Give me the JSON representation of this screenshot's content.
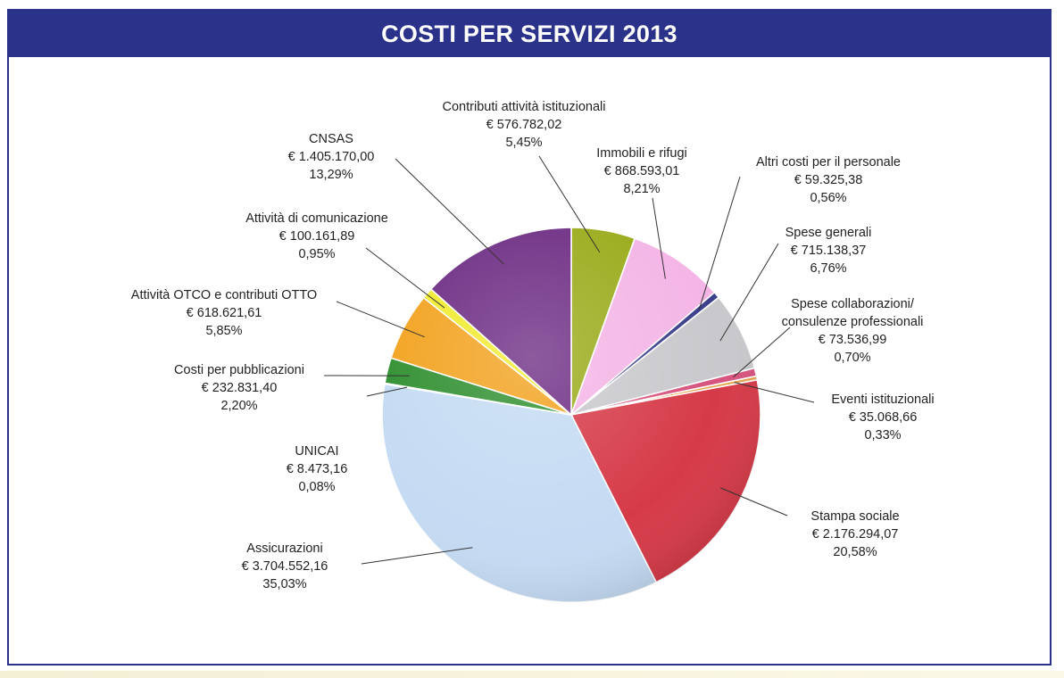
{
  "page": {
    "title": "COSTI  PER SERVIZI 2013"
  },
  "chart_data": {
    "type": "pie",
    "title": "COSTI  PER SERVIZI 2013",
    "total_percent": 100,
    "slices": [
      {
        "label": "Contributi attività istituzionali",
        "value_text": "€ 576.782,02",
        "percent_text": "5,45%",
        "percent": 5.45,
        "color": "#9aab1a"
      },
      {
        "label": "Immobili e rifugi",
        "value_text": "€ 868.593,01",
        "percent_text": "8,21%",
        "percent": 8.21,
        "color": "#f4b5e6"
      },
      {
        "label": "Altri costi per il personale",
        "value_text": "€ 59.325,38",
        "percent_text": "0,56%",
        "percent": 0.56,
        "color": "#3b3f8c"
      },
      {
        "label": "Spese generali",
        "value_text": "€ 715.138,37",
        "percent_text": "6,76%",
        "percent": 6.76,
        "color": "#c9c8cc"
      },
      {
        "label": "Spese collaborazioni/ consulenze professionali",
        "value_text": "€ 73.536,99",
        "percent_text": "0,70%",
        "percent": 0.7,
        "color": "#d6547e"
      },
      {
        "label": "Eventi istituzionali",
        "value_text": "€ 35.068,66",
        "percent_text": "0,33%",
        "percent": 0.33,
        "color": "#e6a24b"
      },
      {
        "label": "Stampa sociale",
        "value_text": "€ 2.176.294,07",
        "percent_text": "20,58%",
        "percent": 20.58,
        "color": "#d63a48"
      },
      {
        "label": "Assicurazioni",
        "value_text": "€ 3.704.552,16",
        "percent_text": "35,03%",
        "percent": 35.03,
        "color": "#c4dbf3"
      },
      {
        "label": "UNICAI",
        "value_text": "€ 8.473,16",
        "percent_text": "0,08%",
        "percent": 0.08,
        "color": "#3e63b0"
      },
      {
        "label": "Costi per pubblicazioni",
        "value_text": "€ 232.831,40",
        "percent_text": "2,20%",
        "percent": 2.2,
        "color": "#2f8f2f"
      },
      {
        "label": "Attività OTCO e contributi OTTO",
        "value_text": "€ 618.621,61",
        "percent_text": "5,85%",
        "percent": 5.85,
        "color": "#f2a21e"
      },
      {
        "label": "Attività di comunicazione",
        "value_text": "€ 100.161,89",
        "percent_text": "0,95%",
        "percent": 0.95,
        "color": "#f1ea2e"
      },
      {
        "label": "CNSAS",
        "value_text": "€ 1.405.170,00",
        "percent_text": "13,29%",
        "percent": 13.29,
        "color": "#6d2c83"
      }
    ]
  }
}
